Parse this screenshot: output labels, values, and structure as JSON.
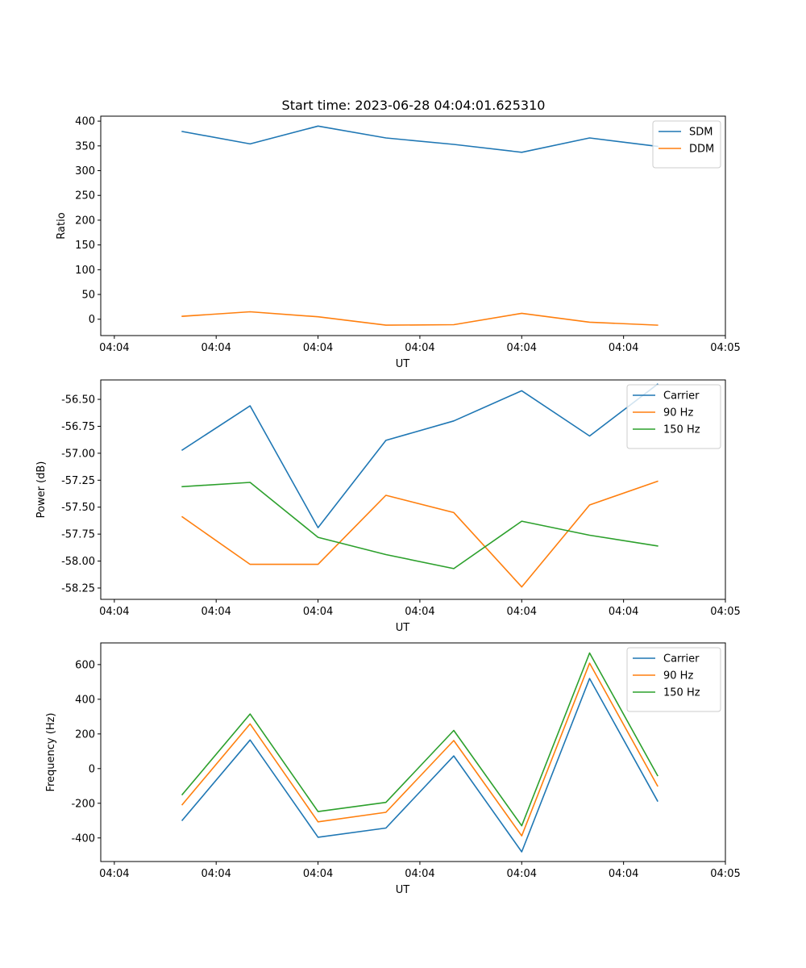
{
  "figure": {
    "title": "Start time: 2023-06-28 04:04:01.625310"
  },
  "chart_data": [
    {
      "type": "line",
      "ylabel": "Ratio",
      "xlabel": "UT",
      "x": [
        1,
        2,
        3,
        4,
        5,
        6,
        7,
        8
      ],
      "x_tick_values": [
        0,
        1.5,
        3,
        4.5,
        6,
        7.5,
        9
      ],
      "x_tick_labels": [
        "04:04",
        "04:04",
        "04:04",
        "04:04",
        "04:04",
        "04:04",
        "04:05"
      ],
      "xlim": [
        -0.2,
        9.0
      ],
      "ylim": [
        -33,
        410
      ],
      "y_ticks": [
        0,
        50,
        100,
        150,
        200,
        250,
        300,
        350,
        400
      ],
      "legend": "upper right",
      "series": [
        {
          "name": "SDM",
          "color": "#1f77b4",
          "values": [
            379,
            354,
            390,
            366,
            353,
            337,
            366,
            349
          ]
        },
        {
          "name": "DDM",
          "color": "#ff7f0e",
          "values": [
            6,
            15,
            5,
            -12,
            -11,
            12,
            -6,
            -12
          ]
        }
      ]
    },
    {
      "type": "line",
      "ylabel": "Power (dB)",
      "xlabel": "UT",
      "x": [
        1,
        2,
        3,
        4,
        5,
        6,
        7,
        8
      ],
      "x_tick_values": [
        0,
        1.5,
        3,
        4.5,
        6,
        7.5,
        9
      ],
      "x_tick_labels": [
        "04:04",
        "04:04",
        "04:04",
        "04:04",
        "04:04",
        "04:04",
        "04:05"
      ],
      "xlim": [
        -0.2,
        9.0
      ],
      "ylim": [
        -58.355,
        -56.32
      ],
      "y_ticks": [
        -58.25,
        -58.0,
        -57.75,
        -57.5,
        -57.25,
        -57.0,
        -56.75,
        -56.5
      ],
      "y_tick_labels": [
        "-58.25",
        "-58.00",
        "-57.75",
        "-57.50",
        "-57.25",
        "-57.00",
        "-56.75",
        "-56.50"
      ],
      "legend": "upper right",
      "series": [
        {
          "name": "Carrier",
          "color": "#1f77b4",
          "values": [
            -56.97,
            -56.56,
            -57.69,
            -56.88,
            -56.7,
            -56.42,
            -56.84,
            -56.36
          ]
        },
        {
          "name": "90 Hz",
          "color": "#ff7f0e",
          "values": [
            -57.59,
            -58.03,
            -58.03,
            -57.39,
            -57.55,
            -58.24,
            -57.48,
            -57.26
          ]
        },
        {
          "name": "150 Hz",
          "color": "#2ca02c",
          "values": [
            -57.31,
            -57.27,
            -57.78,
            -57.94,
            -58.07,
            -57.63,
            -57.76,
            -57.86
          ]
        }
      ]
    },
    {
      "type": "line",
      "ylabel": "Frequency (Hz)",
      "xlabel": "UT",
      "x": [
        1,
        2,
        3,
        4,
        5,
        6,
        7,
        8
      ],
      "x_tick_values": [
        0,
        1.5,
        3,
        4.5,
        6,
        7.5,
        9
      ],
      "x_tick_labels": [
        "04:04",
        "04:04",
        "04:04",
        "04:04",
        "04:04",
        "04:04",
        "04:05"
      ],
      "xlim": [
        -0.2,
        9.0
      ],
      "ylim": [
        -536,
        725
      ],
      "y_ticks": [
        -400,
        -200,
        0,
        200,
        400,
        600
      ],
      "legend": "upper right",
      "series": [
        {
          "name": "Carrier",
          "color": "#1f77b4",
          "values": [
            -298,
            165,
            -396,
            -343,
            73,
            -480,
            520,
            -187
          ]
        },
        {
          "name": "90 Hz",
          "color": "#ff7f0e",
          "values": [
            -208,
            258,
            -307,
            -252,
            162,
            -388,
            608,
            -100
          ]
        },
        {
          "name": "150 Hz",
          "color": "#2ca02c",
          "values": [
            -150,
            315,
            -248,
            -195,
            220,
            -330,
            667,
            -40
          ]
        }
      ]
    }
  ]
}
